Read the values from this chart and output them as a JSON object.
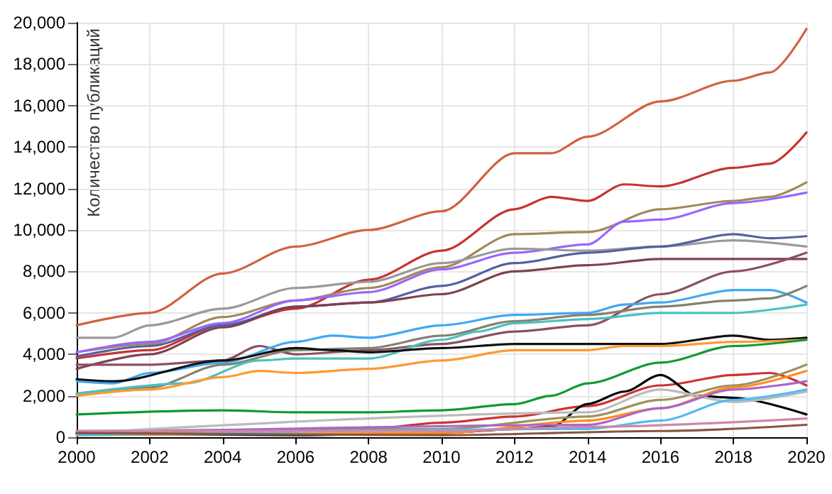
{
  "chart_data": {
    "type": "line",
    "ylabel": "Количество публикаций",
    "xlim": [
      2000,
      2020
    ],
    "xticks": [
      2000,
      2002,
      2004,
      2006,
      2008,
      2010,
      2012,
      2014,
      2016,
      2018,
      2020
    ],
    "ylim": [
      0,
      20000
    ],
    "yticks": [
      {
        "value": 0,
        "label": "0"
      },
      {
        "value": 2000,
        "label": "2,000"
      },
      {
        "value": 4000,
        "label": "4,000"
      },
      {
        "value": 6000,
        "label": "6,000"
      },
      {
        "value": 8000,
        "label": "8,000"
      },
      {
        "value": 10000,
        "label": "10,000"
      },
      {
        "value": 12000,
        "label": "12,000"
      },
      {
        "value": 14000,
        "label": "14,000"
      },
      {
        "value": 16000,
        "label": "16,000"
      },
      {
        "value": 18000,
        "label": "18,000"
      },
      {
        "value": 20000,
        "label": "20,000"
      }
    ],
    "grid": true,
    "marker": "none",
    "line_style": "solid",
    "series": [
      {
        "color": "#d0623f",
        "x": [
          2000,
          2002,
          2004,
          2006,
          2008,
          2010,
          2012,
          2013,
          2014,
          2016,
          2018,
          2019,
          2020
        ],
        "values": [
          5400,
          6000,
          7900,
          9200,
          10000,
          10900,
          13700,
          13700,
          14500,
          16200,
          17200,
          17600,
          19700
        ]
      },
      {
        "color": "#c83232",
        "x": [
          2000,
          2002,
          2004,
          2006,
          2008,
          2010,
          2012,
          2013,
          2014,
          2015,
          2016,
          2018,
          2019,
          2020
        ],
        "values": [
          3800,
          4200,
          5400,
          6200,
          7600,
          9000,
          11000,
          11600,
          11400,
          12200,
          12100,
          13000,
          13200,
          14700
        ]
      },
      {
        "color": "#a08a5a",
        "x": [
          2000,
          2002,
          2004,
          2006,
          2008,
          2010,
          2012,
          2014,
          2016,
          2018,
          2019,
          2020
        ],
        "values": [
          4100,
          4500,
          5800,
          6600,
          7200,
          8200,
          9800,
          9900,
          11000,
          11400,
          11600,
          12300
        ]
      },
      {
        "color": "#9966ff",
        "x": [
          2000,
          2002,
          2004,
          2006,
          2008,
          2010,
          2012,
          2014,
          2015,
          2016,
          2018,
          2020
        ],
        "values": [
          4100,
          4600,
          5500,
          6600,
          7000,
          8100,
          8900,
          9300,
          10400,
          10500,
          11300,
          11800
        ]
      },
      {
        "color": "#999999",
        "x": [
          2000,
          2001,
          2002,
          2004,
          2006,
          2008,
          2010,
          2012,
          2014,
          2016,
          2018,
          2020
        ],
        "values": [
          4800,
          4800,
          5400,
          6200,
          7200,
          7500,
          8400,
          9100,
          9000,
          9200,
          9500,
          9200
        ]
      },
      {
        "color": "#5560a0",
        "x": [
          2000,
          2002,
          2004,
          2006,
          2008,
          2010,
          2012,
          2014,
          2016,
          2018,
          2019,
          2020
        ],
        "values": [
          3900,
          4400,
          5400,
          6300,
          6500,
          7300,
          8400,
          8900,
          9200,
          9800,
          9600,
          9700
        ]
      },
      {
        "color": "#804050",
        "x": [
          2000,
          2002,
          2004,
          2006,
          2008,
          2010,
          2012,
          2014,
          2016,
          2018,
          2020
        ],
        "values": [
          3300,
          4000,
          5300,
          6300,
          6500,
          6900,
          8000,
          8300,
          8600,
          8600,
          8600
        ]
      },
      {
        "color": "#8a5060",
        "x": [
          2000,
          2002,
          2004,
          2005,
          2006,
          2008,
          2010,
          2012,
          2014,
          2016,
          2018,
          2020
        ],
        "values": [
          3500,
          3500,
          3700,
          4400,
          4000,
          4200,
          4500,
          5100,
          5400,
          6900,
          8000,
          8900
        ]
      },
      {
        "color": "#3fa9f5",
        "x": [
          2000,
          2001,
          2002,
          2004,
          2006,
          2007,
          2008,
          2010,
          2012,
          2014,
          2015,
          2016,
          2018,
          2019,
          2020
        ],
        "values": [
          2700,
          2600,
          3100,
          3600,
          4600,
          4900,
          4800,
          5400,
          5900,
          6000,
          6400,
          6500,
          7100,
          7100,
          6500
        ]
      },
      {
        "color": "#858070",
        "x": [
          2000,
          2002,
          2004,
          2006,
          2008,
          2010,
          2012,
          2014,
          2016,
          2018,
          2019,
          2020
        ],
        "values": [
          2100,
          2400,
          3500,
          4200,
          4300,
          4900,
          5600,
          5900,
          6300,
          6600,
          6700,
          7300
        ]
      },
      {
        "color": "#4cc0c0",
        "x": [
          2000,
          2003,
          2005,
          2006,
          2008,
          2010,
          2011,
          2012,
          2014,
          2016,
          2018,
          2020
        ],
        "values": [
          2100,
          2600,
          3700,
          3800,
          3800,
          4700,
          5100,
          5500,
          5700,
          6000,
          6000,
          6400
        ]
      },
      {
        "color": "#111111",
        "x": [
          2000,
          2001,
          2004,
          2006,
          2007,
          2008,
          2010,
          2012,
          2014,
          2016,
          2018,
          2019,
          2020
        ],
        "values": [
          2800,
          2700,
          3700,
          4300,
          4200,
          4100,
          4300,
          4500,
          4500,
          4500,
          4900,
          4700,
          4800
        ]
      },
      {
        "color": "#ff9933",
        "x": [
          2000,
          2002,
          2004,
          2005,
          2006,
          2008,
          2010,
          2012,
          2014,
          2015,
          2016,
          2018,
          2020
        ],
        "values": [
          2000,
          2300,
          2900,
          3200,
          3100,
          3300,
          3700,
          4200,
          4200,
          4400,
          4400,
          4600,
          4700
        ]
      },
      {
        "color": "#119933",
        "x": [
          2000,
          2004,
          2006,
          2008,
          2010,
          2012,
          2013,
          2014,
          2016,
          2018,
          2020
        ],
        "values": [
          1100,
          1300,
          1200,
          1200,
          1300,
          1600,
          2000,
          2600,
          3600,
          4400,
          4700
        ]
      },
      {
        "color": "#cc3333",
        "x": [
          2000,
          2008,
          2010,
          2012,
          2014,
          2016,
          2018,
          2019,
          2020
        ],
        "values": [
          200,
          400,
          700,
          1000,
          1500,
          2500,
          3000,
          3100,
          2500
        ]
      },
      {
        "color": "#000000",
        "x": [
          2000,
          2006,
          2010,
          2012,
          2013,
          2014,
          2015,
          2016,
          2017,
          2018,
          2020
        ],
        "values": [
          200,
          100,
          200,
          400,
          500,
          1600,
          2200,
          3000,
          2000,
          1900,
          1100
        ]
      },
      {
        "color": "#a09060",
        "x": [
          2000,
          2010,
          2014,
          2016,
          2018,
          2020
        ],
        "values": [
          300,
          400,
          1000,
          1800,
          2500,
          3500
        ]
      },
      {
        "color": "#ff8c1a",
        "x": [
          2000,
          2010,
          2014,
          2016,
          2018,
          2020
        ],
        "values": [
          100,
          200,
          800,
          1400,
          2400,
          3200
        ]
      },
      {
        "color": "#bbbbbb",
        "x": [
          2000,
          2014,
          2016,
          2018,
          2020
        ],
        "values": [
          200,
          1200,
          2300,
          1700,
          2200
        ]
      },
      {
        "color": "#55bbee",
        "x": [
          2000,
          2014,
          2016,
          2018,
          2020
        ],
        "values": [
          100,
          400,
          800,
          1800,
          2300
        ]
      },
      {
        "color": "#aa66cc",
        "x": [
          2000,
          2014,
          2016,
          2018,
          2020
        ],
        "values": [
          200,
          600,
          1400,
          2300,
          2700
        ]
      },
      {
        "color": "#cc88aa",
        "x": [
          2000,
          2010,
          2014,
          2020
        ],
        "values": [
          300,
          300,
          500,
          900
        ]
      },
      {
        "color": "#885544",
        "x": [
          2000,
          2010,
          2016,
          2020
        ],
        "values": [
          200,
          100,
          300,
          600
        ]
      }
    ]
  }
}
